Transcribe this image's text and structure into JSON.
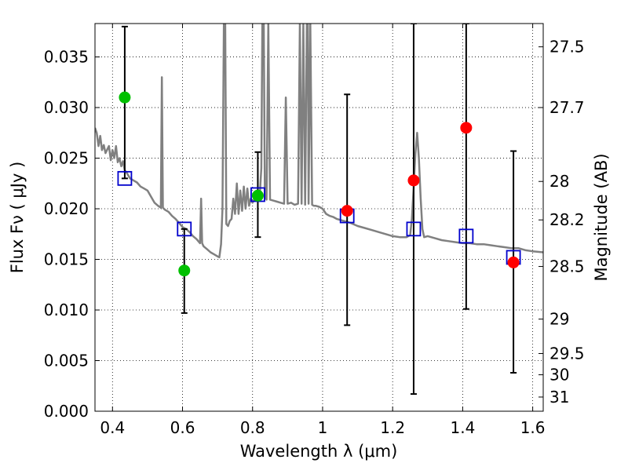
{
  "chart_data": {
    "type": "scatter",
    "xlabel": "Wavelength  λ (μm)",
    "ylabel": "Flux  Fν  ( μJy )",
    "ylabel_right": "Magnitude (AB)",
    "xlim": [
      0.35,
      1.63
    ],
    "ylim": [
      0.0,
      0.0383
    ],
    "grid": true,
    "x_ticks": [
      {
        "value": 0.4,
        "label": "0.4"
      },
      {
        "value": 0.6,
        "label": "0.6"
      },
      {
        "value": 0.8,
        "label": "0.8"
      },
      {
        "value": 1.0,
        "label": "1"
      },
      {
        "value": 1.2,
        "label": "1.2"
      },
      {
        "value": 1.4,
        "label": "1.4"
      },
      {
        "value": 1.6,
        "label": "1.6"
      }
    ],
    "y_ticks": [
      {
        "value": 0.0,
        "label": "0.000"
      },
      {
        "value": 0.005,
        "label": "0.005"
      },
      {
        "value": 0.01,
        "label": "0.010"
      },
      {
        "value": 0.015,
        "label": "0.015"
      },
      {
        "value": 0.02,
        "label": "0.020"
      },
      {
        "value": 0.025,
        "label": "0.025"
      },
      {
        "value": 0.03,
        "label": "0.030"
      },
      {
        "value": 0.035,
        "label": "0.035"
      }
    ],
    "right_ticks": [
      {
        "label": "27.5",
        "flux": 0.036
      },
      {
        "label": "27.7",
        "flux": 0.03
      },
      {
        "label": "28",
        "flux": 0.0227
      },
      {
        "label": "28.2",
        "flux": 0.0189
      },
      {
        "label": "28.5",
        "flux": 0.0143
      },
      {
        "label": "29",
        "flux": 0.0091
      },
      {
        "label": "29.5",
        "flux": 0.0057
      },
      {
        "label": "30",
        "flux": 0.0036
      },
      {
        "label": "31",
        "flux": 0.0014
      }
    ],
    "series": [
      {
        "marker": "line",
        "color": "#808080",
        "points": [
          [
            0.35,
            0.028
          ],
          [
            0.355,
            0.0275
          ],
          [
            0.36,
            0.0262
          ],
          [
            0.365,
            0.0272
          ],
          [
            0.37,
            0.0258
          ],
          [
            0.375,
            0.0263
          ],
          [
            0.38,
            0.0255
          ],
          [
            0.39,
            0.0262
          ],
          [
            0.395,
            0.0248
          ],
          [
            0.4,
            0.0258
          ],
          [
            0.405,
            0.025
          ],
          [
            0.41,
            0.0262
          ],
          [
            0.415,
            0.0246
          ],
          [
            0.42,
            0.025
          ],
          [
            0.425,
            0.0242
          ],
          [
            0.43,
            0.0247
          ],
          [
            0.435,
            0.0238
          ],
          [
            0.44,
            0.0236
          ],
          [
            0.45,
            0.023
          ],
          [
            0.46,
            0.0228
          ],
          [
            0.47,
            0.0226
          ],
          [
            0.48,
            0.0222
          ],
          [
            0.49,
            0.022
          ],
          [
            0.5,
            0.0218
          ],
          [
            0.51,
            0.0212
          ],
          [
            0.52,
            0.0206
          ],
          [
            0.53,
            0.0203
          ],
          [
            0.538,
            0.0201
          ],
          [
            0.541,
            0.033
          ],
          [
            0.544,
            0.0201
          ],
          [
            0.55,
            0.0199
          ],
          [
            0.56,
            0.0197
          ],
          [
            0.57,
            0.0193
          ],
          [
            0.58,
            0.019
          ],
          [
            0.59,
            0.0186
          ],
          [
            0.6,
            0.0182
          ],
          [
            0.61,
            0.018
          ],
          [
            0.62,
            0.0177
          ],
          [
            0.63,
            0.0173
          ],
          [
            0.64,
            0.017
          ],
          [
            0.65,
            0.0166
          ],
          [
            0.653,
            0.021
          ],
          [
            0.656,
            0.0166
          ],
          [
            0.66,
            0.0163
          ],
          [
            0.67,
            0.016
          ],
          [
            0.68,
            0.0157
          ],
          [
            0.69,
            0.0155
          ],
          [
            0.7,
            0.0153
          ],
          [
            0.705,
            0.0152
          ],
          [
            0.71,
            0.0165
          ],
          [
            0.714,
            0.02
          ],
          [
            0.718,
            0.0383
          ],
          [
            0.722,
            0.0383
          ],
          [
            0.725,
            0.0185
          ],
          [
            0.73,
            0.0183
          ],
          [
            0.735,
            0.0188
          ],
          [
            0.74,
            0.019
          ],
          [
            0.745,
            0.021
          ],
          [
            0.75,
            0.0195
          ],
          [
            0.755,
            0.0225
          ],
          [
            0.76,
            0.0195
          ],
          [
            0.765,
            0.0218
          ],
          [
            0.77,
            0.0198
          ],
          [
            0.775,
            0.0222
          ],
          [
            0.78,
            0.02
          ],
          [
            0.785,
            0.022
          ],
          [
            0.79,
            0.0203
          ],
          [
            0.795,
            0.021
          ],
          [
            0.8,
            0.0206
          ],
          [
            0.81,
            0.0212
          ],
          [
            0.82,
            0.021
          ],
          [
            0.825,
            0.024
          ],
          [
            0.828,
            0.0383
          ],
          [
            0.832,
            0.0383
          ],
          [
            0.835,
            0.0212
          ],
          [
            0.84,
            0.0209
          ],
          [
            0.845,
            0.0383
          ],
          [
            0.85,
            0.0209
          ],
          [
            0.86,
            0.0208
          ],
          [
            0.87,
            0.0207
          ],
          [
            0.88,
            0.0206
          ],
          [
            0.89,
            0.0205
          ],
          [
            0.895,
            0.031
          ],
          [
            0.9,
            0.0205
          ],
          [
            0.91,
            0.0206
          ],
          [
            0.92,
            0.0204
          ],
          [
            0.93,
            0.0205
          ],
          [
            0.935,
            0.0383
          ],
          [
            0.94,
            0.0205
          ],
          [
            0.945,
            0.0383
          ],
          [
            0.95,
            0.0204
          ],
          [
            0.955,
            0.0383
          ],
          [
            0.958,
            0.0383
          ],
          [
            0.96,
            0.0205
          ],
          [
            0.965,
            0.0383
          ],
          [
            0.97,
            0.0204
          ],
          [
            0.975,
            0.0203
          ],
          [
            0.98,
            0.0203
          ],
          [
            0.99,
            0.0202
          ],
          [
            1.0,
            0.02
          ],
          [
            1.01,
            0.0195
          ],
          [
            1.02,
            0.0193
          ],
          [
            1.03,
            0.0192
          ],
          [
            1.04,
            0.019
          ],
          [
            1.05,
            0.0189
          ],
          [
            1.06,
            0.0188
          ],
          [
            1.08,
            0.0186
          ],
          [
            1.1,
            0.0183
          ],
          [
            1.12,
            0.0181
          ],
          [
            1.14,
            0.0179
          ],
          [
            1.16,
            0.0177
          ],
          [
            1.18,
            0.0175
          ],
          [
            1.2,
            0.0173
          ],
          [
            1.22,
            0.0172
          ],
          [
            1.24,
            0.0172
          ],
          [
            1.25,
            0.0174
          ],
          [
            1.255,
            0.019
          ],
          [
            1.26,
            0.022
          ],
          [
            1.265,
            0.0255
          ],
          [
            1.27,
            0.0275
          ],
          [
            1.275,
            0.025
          ],
          [
            1.28,
            0.021
          ],
          [
            1.285,
            0.018
          ],
          [
            1.29,
            0.0172
          ],
          [
            1.3,
            0.0173
          ],
          [
            1.32,
            0.0171
          ],
          [
            1.34,
            0.0169
          ],
          [
            1.36,
            0.0168
          ],
          [
            1.38,
            0.0167
          ],
          [
            1.4,
            0.0166
          ],
          [
            1.42,
            0.0166
          ],
          [
            1.44,
            0.0165
          ],
          [
            1.46,
            0.0165
          ],
          [
            1.48,
            0.0164
          ],
          [
            1.5,
            0.0163
          ],
          [
            1.52,
            0.0162
          ],
          [
            1.54,
            0.0161
          ],
          [
            1.56,
            0.0161
          ],
          [
            1.58,
            0.0159
          ],
          [
            1.6,
            0.0158
          ],
          [
            1.63,
            0.0157
          ]
        ]
      },
      {
        "marker": "errorbar",
        "color": "#000000",
        "points": [
          {
            "x": 0.435,
            "y": 0.023,
            "ylo": 0.023,
            "yhi": 0.038
          },
          {
            "x": 0.605,
            "y": 0.018,
            "ylo": 0.0097,
            "yhi": 0.018
          },
          {
            "x": 0.815,
            "y": 0.0214,
            "ylo": 0.0172,
            "yhi": 0.0256
          },
          {
            "x": 1.07,
            "y": 0.0193,
            "ylo": 0.0085,
            "yhi": 0.0313
          },
          {
            "x": 1.26,
            "y": 0.018,
            "ylo": 0.0017,
            "yhi": 0.0383
          },
          {
            "x": 1.41,
            "y": 0.0173,
            "ylo": 0.0101,
            "yhi": 0.0383
          },
          {
            "x": 1.545,
            "y": 0.0152,
            "ylo": 0.0038,
            "yhi": 0.0257
          }
        ]
      },
      {
        "marker": "square",
        "color": "#0000cc",
        "points": [
          [
            0.435,
            0.023
          ],
          [
            0.605,
            0.018
          ],
          [
            0.815,
            0.0214
          ],
          [
            1.07,
            0.0193
          ],
          [
            1.26,
            0.018
          ],
          [
            1.41,
            0.0173
          ],
          [
            1.545,
            0.0152
          ]
        ]
      },
      {
        "marker": "circle",
        "color": "#00c000",
        "points": [
          [
            0.435,
            0.031
          ],
          [
            0.605,
            0.0139
          ],
          [
            0.815,
            0.0213
          ]
        ]
      },
      {
        "marker": "circle",
        "color": "#ff0000",
        "points": [
          [
            1.07,
            0.0198
          ],
          [
            1.26,
            0.0228
          ],
          [
            1.41,
            0.028
          ],
          [
            1.545,
            0.0147
          ]
        ]
      }
    ]
  }
}
